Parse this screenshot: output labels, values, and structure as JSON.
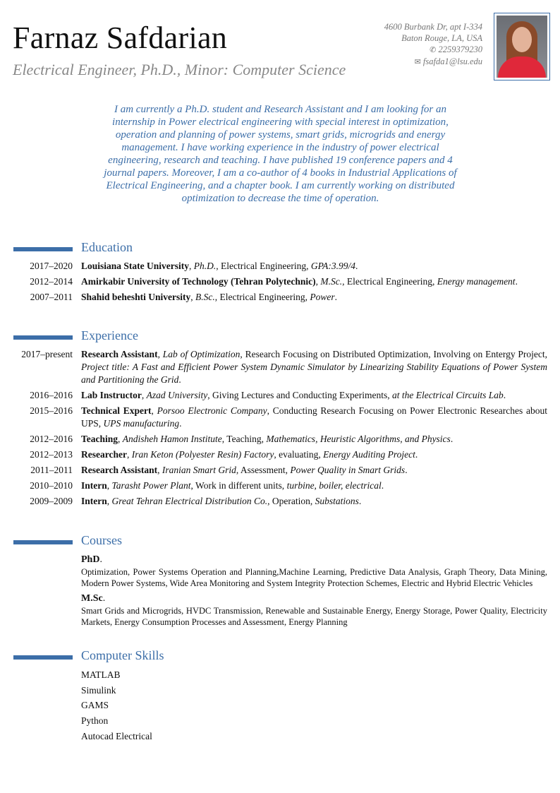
{
  "header": {
    "name": "Farnaz Safdarian",
    "title": "Electrical Engineer, Ph.D., Minor: Computer Science",
    "address_line1": "4600 Burbank Dr, apt I-334",
    "address_line2": "Baton Rouge, LA, USA",
    "phone": "2259379230",
    "phone_icon": "mobile-phone-icon",
    "email": "fsafda1@lsu.edu",
    "email_icon": "envelope-icon"
  },
  "colors": {
    "accent": "#3c6ea8",
    "muted": "#888888"
  },
  "summary": "I am currently a Ph.D. student and Research Assistant and I am looking for an internship in Power electrical engineering with special interest in optimization, operation and planning of power systems, smart grids, microgrids and energy management. I have working experience in the industry of power electrical engineering, research and teaching. I have published 19 conference papers and 4 journal papers. Moreover, I am a co-author of 4 books in Industrial Applications of Electrical Engineering, and a chapter book. I am currently working on distributed optimization to decrease the time of operation.",
  "education": {
    "title": "Education",
    "entries": [
      {
        "date": "2017–2020",
        "parts": [
          [
            "b",
            "Louisiana State University"
          ],
          [
            "n",
            ", "
          ],
          [
            "i",
            "Ph.D."
          ],
          [
            "n",
            ", Electrical Engineering, "
          ],
          [
            "i",
            "GPA:3.99/4"
          ],
          [
            "n",
            "."
          ]
        ]
      },
      {
        "date": "2012–2014",
        "parts": [
          [
            "b",
            "Amirkabir University of Technology (Tehran Polytechnic)"
          ],
          [
            "n",
            ", "
          ],
          [
            "i",
            "M.Sc."
          ],
          [
            "n",
            ", Electrical Engineering, "
          ],
          [
            "i",
            "Energy management"
          ],
          [
            "n",
            "."
          ]
        ]
      },
      {
        "date": "2007–2011",
        "parts": [
          [
            "b",
            "Shahid beheshti University"
          ],
          [
            "n",
            ", "
          ],
          [
            "i",
            "B.Sc."
          ],
          [
            "n",
            ", Electrical Engineering, "
          ],
          [
            "i",
            "Power"
          ],
          [
            "n",
            "."
          ]
        ]
      }
    ]
  },
  "experience": {
    "title": "Experience",
    "entries": [
      {
        "date": "2017–present",
        "parts": [
          [
            "b",
            "Research Assistant"
          ],
          [
            "n",
            ", "
          ],
          [
            "i",
            "Lab of Optimization"
          ],
          [
            "n",
            ", Research Focusing on Distributed Optimization, Involving on Entergy Project, "
          ],
          [
            "i",
            "Project title: A Fast and Efficient Power System Dynamic Simulator by Linearizing Stability Equations of Power System and Partitioning the Grid"
          ],
          [
            "n",
            "."
          ]
        ]
      },
      {
        "date": "2016–2016",
        "parts": [
          [
            "b",
            "Lab Instructor"
          ],
          [
            "n",
            ", "
          ],
          [
            "i",
            "Azad University"
          ],
          [
            "n",
            ", Giving Lectures and Conducting Experiments, "
          ],
          [
            "i",
            "at the Electrical Circuits Lab"
          ],
          [
            "n",
            "."
          ]
        ]
      },
      {
        "date": "2015–2016",
        "parts": [
          [
            "b",
            "Technical Expert"
          ],
          [
            "n",
            ", "
          ],
          [
            "i",
            "Porsoo Electronic Company"
          ],
          [
            "n",
            ", Conducting Research Focusing on Power Electronic Researches about UPS, "
          ],
          [
            "i",
            "UPS manufacturing"
          ],
          [
            "n",
            "."
          ]
        ]
      },
      {
        "date": "2012–2016",
        "parts": [
          [
            "b",
            "Teaching"
          ],
          [
            "n",
            ", "
          ],
          [
            "i",
            "Andisheh Hamon Institute"
          ],
          [
            "n",
            ", Teaching,  "
          ],
          [
            "i",
            "Mathematics, Heuristic Algorithms, and Physics"
          ],
          [
            "n",
            "."
          ]
        ]
      },
      {
        "date": "2012–2013",
        "parts": [
          [
            "b",
            "Researcher"
          ],
          [
            "n",
            ", "
          ],
          [
            "i",
            "Iran Keton (Polyester Resin) Factory"
          ],
          [
            "n",
            ", evaluating, "
          ],
          [
            "i",
            "Energy Auditing Project"
          ],
          [
            "n",
            "."
          ]
        ]
      },
      {
        "date": "2011–2011",
        "parts": [
          [
            "b",
            "Research Assistant"
          ],
          [
            "n",
            ", "
          ],
          [
            "i",
            "Iranian Smart Grid"
          ],
          [
            "n",
            ", Assessment, "
          ],
          [
            "i",
            "Power Quality in Smart Grids"
          ],
          [
            "n",
            "."
          ]
        ]
      },
      {
        "date": "2010–2010",
        "parts": [
          [
            "b",
            "Intern"
          ],
          [
            "n",
            ", "
          ],
          [
            "i",
            "Tarasht Power Plant"
          ],
          [
            "n",
            ", Work in different units, "
          ],
          [
            "i",
            "turbine, boiler, electrical"
          ],
          [
            "n",
            "."
          ]
        ]
      },
      {
        "date": "2009–2009",
        "parts": [
          [
            "b",
            "Intern"
          ],
          [
            "n",
            ", "
          ],
          [
            "i",
            "Great Tehran Electrical Distribution Co."
          ],
          [
            "n",
            ", Operation, "
          ],
          [
            "i",
            "Substations"
          ],
          [
            "n",
            "."
          ]
        ]
      }
    ]
  },
  "courses": {
    "title": "Courses",
    "groups": [
      {
        "heading": "PhD",
        "text": "Optimization, Power Systems Operation and Planning,Machine Learning, Predictive Data Analysis, Graph Theory, Data Mining, Modern Power Systems, Wide Area Monitoring and System Integrity Protection Schemes, Electric and Hybrid Electric Vehicles"
      },
      {
        "heading": "M.Sc",
        "text": "Smart Grids and Microgrids, HVDC Transmission, Renewable and Sustainable Energy, Energy Storage, Power Quality, Electricity Markets, Energy Consumption Processes and Assessment, Energy Planning"
      }
    ]
  },
  "skills": {
    "title": "Computer Skills",
    "items": [
      "MATLAB",
      "Simulink",
      "GAMS",
      "Python",
      "Autocad Electrical"
    ]
  }
}
